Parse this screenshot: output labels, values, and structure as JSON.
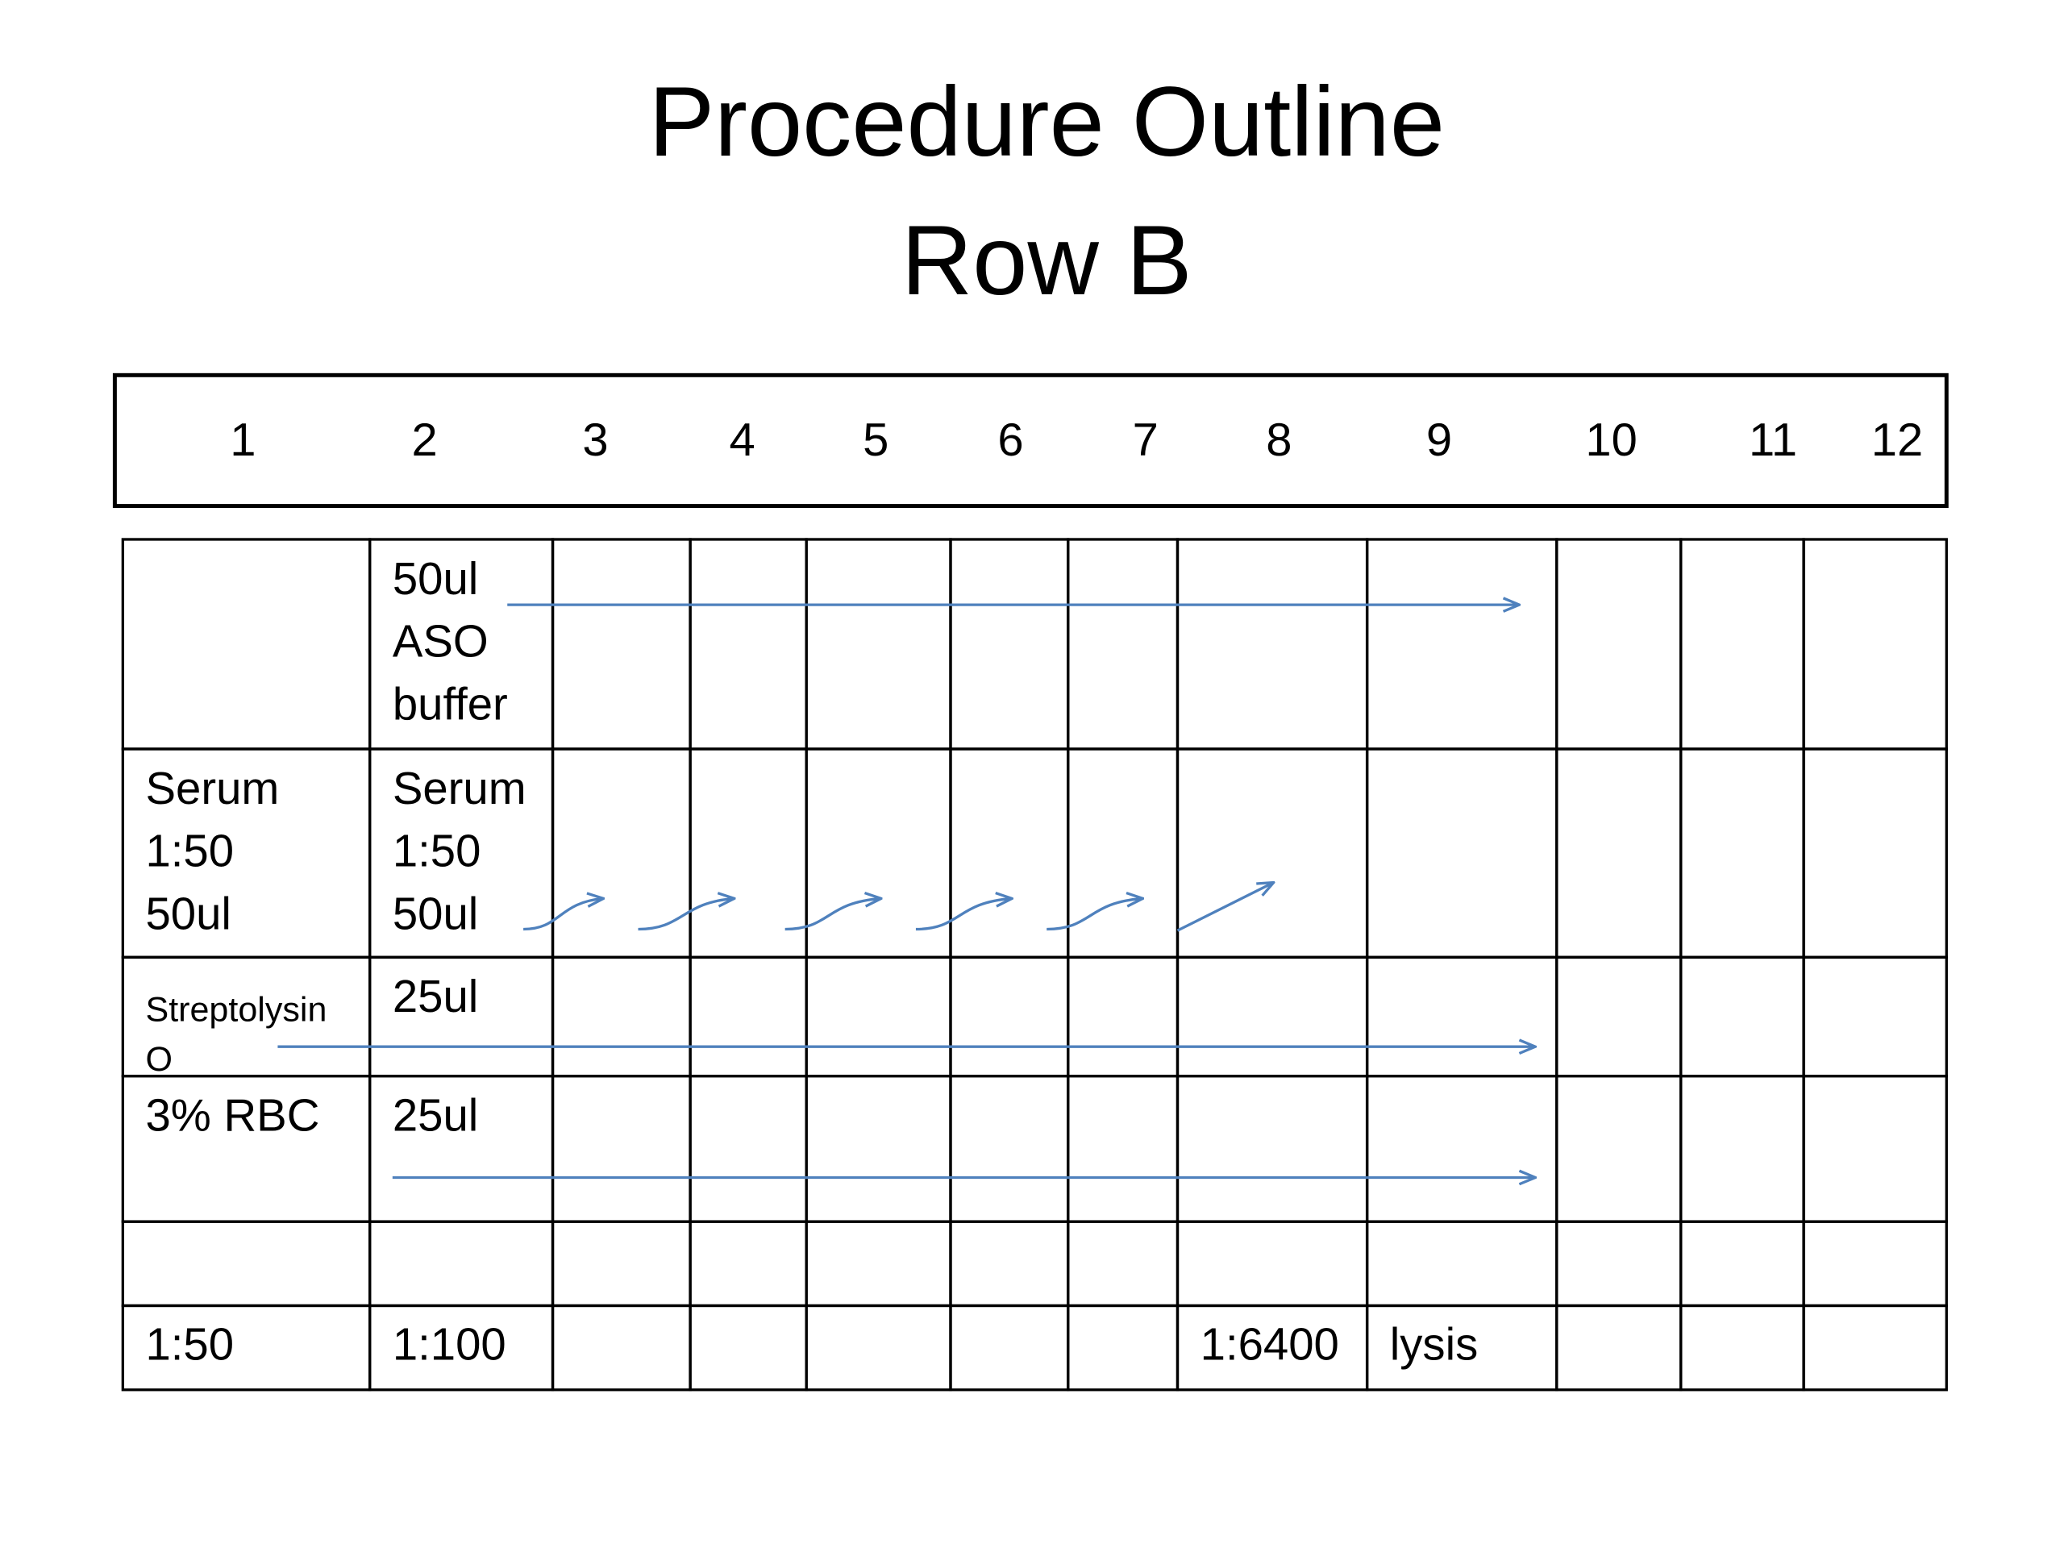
{
  "title": [
    "Procedure Outline",
    "Row B"
  ],
  "header": [
    "1",
    "2",
    "3",
    "4",
    "5",
    "6",
    "7",
    "8",
    "9",
    "10",
    "11",
    "12"
  ],
  "table": {
    "rows": [
      [
        null,
        [
          "50ul",
          "ASO",
          "buffer"
        ],
        null,
        null,
        null,
        null,
        null,
        null,
        null,
        null,
        null,
        null
      ],
      [
        [
          "Serum",
          "1:50",
          "50ul"
        ],
        [
          "Serum",
          "1:50",
          "50ul"
        ],
        null,
        null,
        null,
        null,
        null,
        null,
        null,
        null,
        null,
        null
      ],
      [
        [
          "Streptolysin",
          "O"
        ],
        [
          "25ul"
        ],
        null,
        null,
        null,
        null,
        null,
        null,
        null,
        null,
        null,
        null
      ],
      [
        [
          "3% RBC"
        ],
        [
          "25ul"
        ],
        null,
        null,
        null,
        null,
        null,
        null,
        null,
        null,
        null,
        null
      ],
      [
        null,
        null,
        null,
        null,
        null,
        null,
        null,
        null,
        null,
        null,
        null,
        null
      ],
      [
        [
          "1:50"
        ],
        [
          "1:100"
        ],
        null,
        null,
        null,
        null,
        null,
        [
          "1:6400"
        ],
        [
          "lysis"
        ],
        null,
        null,
        null
      ]
    ]
  }
}
